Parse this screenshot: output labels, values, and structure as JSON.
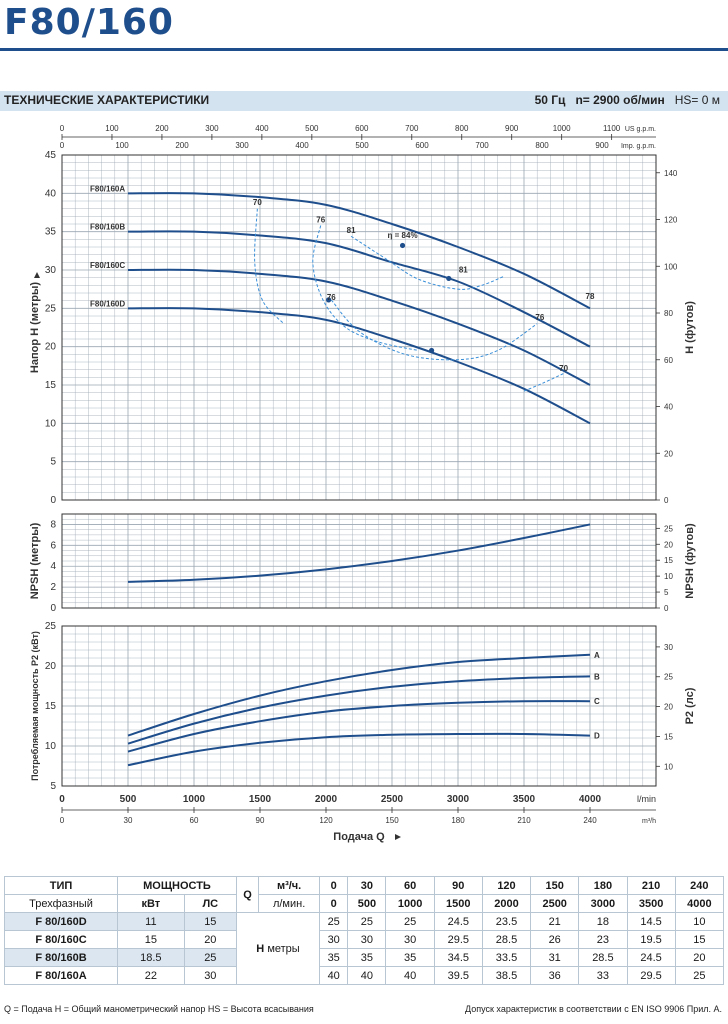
{
  "header": {
    "title": "F80/160",
    "spec_title": "ТЕХНИЧЕСКИЕ ХАРАКТЕРИСТИКИ",
    "freq": "50 Гц",
    "speed": "n= 2900 об/мин",
    "hs": "HS= 0 м"
  },
  "top_axis": {
    "us_ticks": [
      "0",
      "100",
      "200",
      "300",
      "400",
      "500",
      "600",
      "700",
      "800",
      "900",
      "1000",
      "1100"
    ],
    "us_unit": "US g.p.m.",
    "imp_ticks": [
      "0",
      "100",
      "200",
      "300",
      "400",
      "500",
      "600",
      "700",
      "800",
      "900"
    ],
    "imp_unit": "Imp. g.p.m."
  },
  "bottom_axis": {
    "lmin_ticks": [
      "0",
      "500",
      "1000",
      "1500",
      "2000",
      "2500",
      "3000",
      "3500",
      "4000"
    ],
    "lmin_unit": "l/min",
    "m3h_ticks": [
      "0",
      "30",
      "60",
      "90",
      "120",
      "150",
      "180",
      "210",
      "240"
    ],
    "m3h_unit": "m³/h",
    "label": "Подача Q"
  },
  "colors": {
    "curve": "#1f4e8c",
    "eff": "#3a8fd8",
    "grid": "#9aa6b2",
    "axis": "#333333"
  },
  "chart_data": [
    {
      "type": "line",
      "name": "head",
      "ylabel": "Напор H  (метры)",
      "ylabel_right": "H  (футов)",
      "ylim": [
        0,
        45
      ],
      "y_ticks": [
        "0",
        "5",
        "10",
        "15",
        "20",
        "25",
        "30",
        "35",
        "40",
        "45"
      ],
      "right_ticks": [
        "0",
        "20",
        "40",
        "60",
        "80",
        "100",
        "120",
        "140"
      ],
      "x": [
        500,
        1000,
        1500,
        2000,
        2500,
        3000,
        3500,
        4000
      ],
      "series": [
        {
          "name": "F80/160A",
          "values": [
            40,
            40,
            39.5,
            38.5,
            36,
            33,
            29.5,
            25
          ]
        },
        {
          "name": "F80/160B",
          "values": [
            35,
            35,
            34.5,
            33.5,
            31,
            28.5,
            24.5,
            20
          ]
        },
        {
          "name": "F80/160C",
          "values": [
            30,
            30,
            29.5,
            28.5,
            26,
            23,
            19.5,
            15
          ]
        },
        {
          "name": "F80/160D",
          "values": [
            25,
            25,
            24.5,
            23.5,
            21,
            18,
            14.5,
            10
          ]
        }
      ],
      "efficiency_labels": [
        {
          "text": "70",
          "q": 1480,
          "h": 38.5
        },
        {
          "text": "76",
          "q": 1960,
          "h": 36.2
        },
        {
          "text": "81",
          "q": 2190,
          "h": 34.8
        },
        {
          "text": "η = 84%",
          "q": 2580,
          "h": 34.2
        },
        {
          "text": "81",
          "q": 3040,
          "h": 29.7
        },
        {
          "text": "76",
          "q": 2040,
          "h": 26.1
        },
        {
          "text": "76",
          "q": 3620,
          "h": 23.5
        },
        {
          "text": "70",
          "q": 3800,
          "h": 16.8
        },
        {
          "text": "78",
          "q": 4000,
          "h": 26.2
        }
      ]
    },
    {
      "type": "line",
      "name": "npsh",
      "ylabel": "NPSH  (метры)",
      "ylabel_right": "NPSH  (футов)",
      "ylim": [
        0,
        9
      ],
      "y_ticks": [
        "0",
        "2",
        "4",
        "6",
        "8"
      ],
      "right_ticks": [
        "0",
        "5",
        "10",
        "15",
        "20",
        "25"
      ],
      "x": [
        500,
        1000,
        1500,
        2000,
        2500,
        3000,
        3500,
        4000
      ],
      "values": [
        2.5,
        2.7,
        3.1,
        3.7,
        4.5,
        5.5,
        6.7,
        8.0
      ]
    },
    {
      "type": "line",
      "name": "power",
      "ylabel": "Потребляемая мощность P2  (кВт)",
      "ylabel_right": "P2  (лс)",
      "ylim": [
        5,
        25
      ],
      "y_ticks": [
        "5",
        "10",
        "15",
        "20",
        "25"
      ],
      "right_ticks": [
        "10",
        "15",
        "20",
        "25",
        "30"
      ],
      "x": [
        500,
        1000,
        1500,
        2000,
        2500,
        3000,
        3500,
        4000
      ],
      "series": [
        {
          "name": "A",
          "values": [
            11.3,
            14.0,
            16.3,
            18.1,
            19.5,
            20.5,
            21.0,
            21.4
          ]
        },
        {
          "name": "B",
          "values": [
            10.3,
            12.8,
            14.8,
            16.3,
            17.4,
            18.1,
            18.5,
            18.7
          ]
        },
        {
          "name": "C",
          "values": [
            9.3,
            11.5,
            13.1,
            14.3,
            15.0,
            15.4,
            15.6,
            15.6
          ]
        },
        {
          "name": "D",
          "values": [
            7.6,
            9.3,
            10.4,
            11.1,
            11.4,
            11.5,
            11.5,
            11.3
          ]
        }
      ]
    },
    {
      "type": "table",
      "name": "spec_table",
      "headers": {
        "type": "ТИП",
        "power": "МОЩНОСТЬ",
        "phase": "Трехфазный",
        "kw": "кВт",
        "hp": "ЛС",
        "q": "Q",
        "m3h": "м³/ч.",
        "lmin": "л/мин.",
        "h": "H",
        "meters": "метры"
      },
      "m3h": [
        "0",
        "30",
        "60",
        "90",
        "120",
        "150",
        "180",
        "210",
        "240"
      ],
      "lmin": [
        "0",
        "500",
        "1000",
        "1500",
        "2000",
        "2500",
        "3000",
        "3500",
        "4000"
      ],
      "rows": [
        {
          "type": "F 80/160D",
          "kw": "11",
          "hp": "15",
          "h": [
            "25",
            "25",
            "25",
            "24.5",
            "23.5",
            "21",
            "18",
            "14.5",
            "10"
          ]
        },
        {
          "type": "F 80/160C",
          "kw": "15",
          "hp": "20",
          "h": [
            "30",
            "30",
            "30",
            "29.5",
            "28.5",
            "26",
            "23",
            "19.5",
            "15"
          ]
        },
        {
          "type": "F 80/160B",
          "kw": "18.5",
          "hp": "25",
          "h": [
            "35",
            "35",
            "35",
            "34.5",
            "33.5",
            "31",
            "28.5",
            "24.5",
            "20"
          ]
        },
        {
          "type": "F 80/160A",
          "kw": "22",
          "hp": "30",
          "h": [
            "40",
            "40",
            "40",
            "39.5",
            "38.5",
            "36",
            "33",
            "29.5",
            "25"
          ]
        }
      ]
    }
  ],
  "footer": {
    "left": "Q = Подача   H = Общий манометрический напор   HS = Высота всасывания",
    "right": "Допуск характеристик в соответствии с EN ISO 9906 Прил. A."
  }
}
